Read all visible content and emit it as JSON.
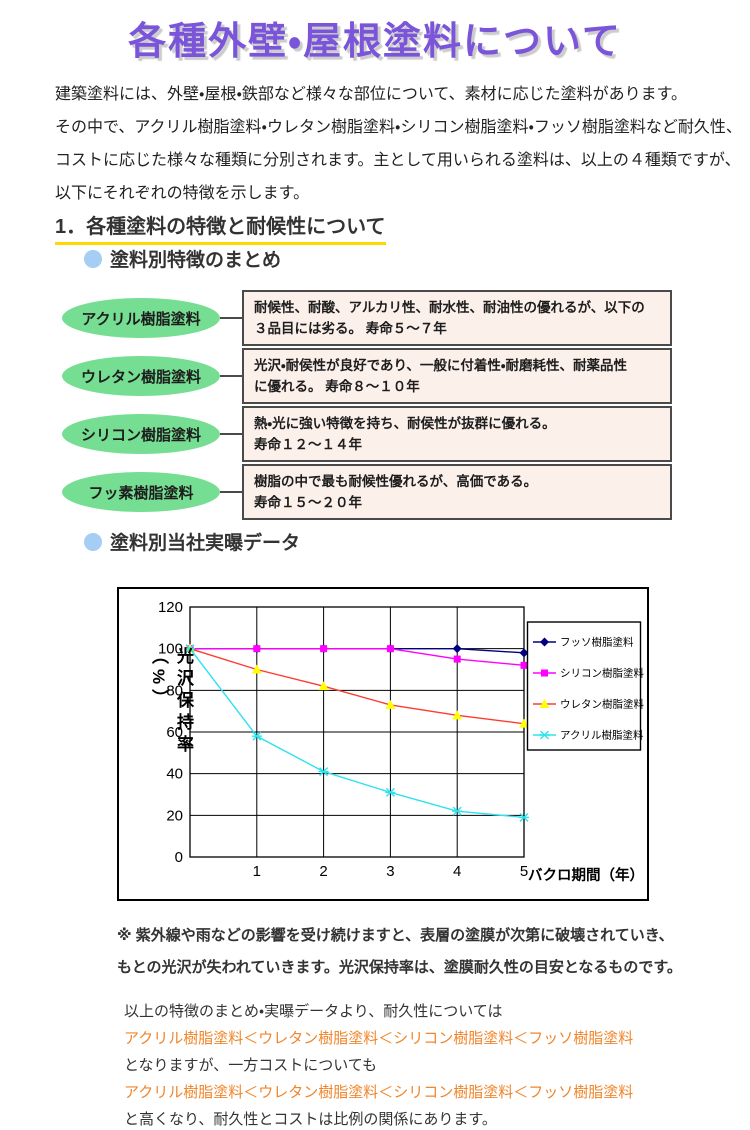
{
  "page": {
    "title": "各種外壁・屋根塗料について"
  },
  "intro": {
    "lines": [
      "建築塗料には、外壁・屋根・鉄部など様々な部位について、素材に応じた塗料があります。",
      "その中で、アクリル樹脂塗料・ウレタン樹脂塗料・シリコン樹脂塗料・フッソ樹脂塗料など耐久性、",
      "コストに応じた様々な種類に分別されます。主として用いられる塗料は、以上の４種類ですが、",
      "以下にそれぞれの特徴を示します。"
    ]
  },
  "section1": {
    "heading": "1．各種塗料の特徴と耐候性について",
    "sub1": "塗料別特徴のまとめ",
    "sub2": "塗料別当社実曝データ"
  },
  "paints": [
    {
      "label": "アクリル樹脂塗料",
      "line1": "耐候性、耐酸、アルカリ性、耐水性、耐油性の優れるが、以下の",
      "line2": "３品目には劣る。 寿命５～７年"
    },
    {
      "label": "ウレタン樹脂塗料",
      "line1": "光沢・耐侯性が良好であり、一般に付着性・耐磨耗性、耐薬品性",
      "line2": "に優れる。 寿命８～１０年"
    },
    {
      "label": "シリコン樹脂塗料",
      "line1": "熱・光に強い特徴を持ち、耐侯性が抜群に優れる。",
      "line2": "寿命１２～１４年"
    },
    {
      "label": "フッ素樹脂塗料",
      "line1": "樹脂の中で最も耐候性優れるが、高価である。",
      "line2": "寿命１５～２０年"
    }
  ],
  "chart_data": {
    "type": "line",
    "title": "",
    "xlabel": "バクロ期間（年）",
    "ylabel": "光沢保持率（%）",
    "x": [
      0,
      1,
      2,
      3,
      4,
      5
    ],
    "xticks": [
      1,
      2,
      3,
      4,
      5
    ],
    "yticks": [
      0,
      20,
      40,
      60,
      80,
      100,
      120
    ],
    "ylim": [
      0,
      120
    ],
    "xlim": [
      0,
      5
    ],
    "grid": true,
    "legend_position": "right-inside",
    "series": [
      {
        "name": "フッソ樹脂塗料",
        "color": "#000080",
        "marker": "diamond",
        "marker_color": "#000080",
        "values": [
          100,
          100,
          100,
          100,
          100,
          98
        ]
      },
      {
        "name": "シリコン樹脂塗料",
        "color": "#ff00ff",
        "marker": "square",
        "marker_color": "#ff00ff",
        "values": [
          100,
          100,
          100,
          100,
          95,
          92
        ]
      },
      {
        "name": "ウレタン樹脂塗料",
        "color": "#ff3b30",
        "marker": "triangle",
        "marker_color": "#ffff00",
        "values": [
          100,
          90,
          82,
          73,
          68,
          64
        ]
      },
      {
        "name": "アクリル樹脂塗料",
        "color": "#2ee2ee",
        "marker": "asterisk",
        "marker_color": "#2ee2ee",
        "values": [
          100,
          58,
          41,
          31,
          22,
          19
        ]
      }
    ]
  },
  "note": {
    "line1": "※ 紫外線や雨などの影響を受け続けますと、表層の塗膜が次第に破壊されていき、",
    "line2": "もとの光沢が失われていきます。光沢保持率は、塗膜耐久性の目安となるものです。"
  },
  "conclusion": {
    "line1": "以上の特徴のまとめ・実曝データより、耐久性については",
    "order1": "アクリル樹脂塗料＜ウレタン樹脂塗料＜シリコン樹脂塗料＜フッソ樹脂塗料",
    "line2": "となりますが、一方コストについても",
    "order2": "アクリル樹脂塗料＜ウレタン樹脂塗料＜シリコン樹脂塗料＜フッソ樹脂塗料",
    "line3": "と高くなり、耐久性とコストは比例の関係にあります。"
  },
  "colors": {
    "title": "#7b55d9",
    "heading_underline_top": "#f39800",
    "heading_underline_bottom": "#ffd800",
    "bullet": "#a6cdf3",
    "ellipse": "#76de92",
    "feature_box_bg": "#fcf0eb",
    "feature_box_border": "#4a4a4a",
    "orange_text": "#f0862c"
  }
}
